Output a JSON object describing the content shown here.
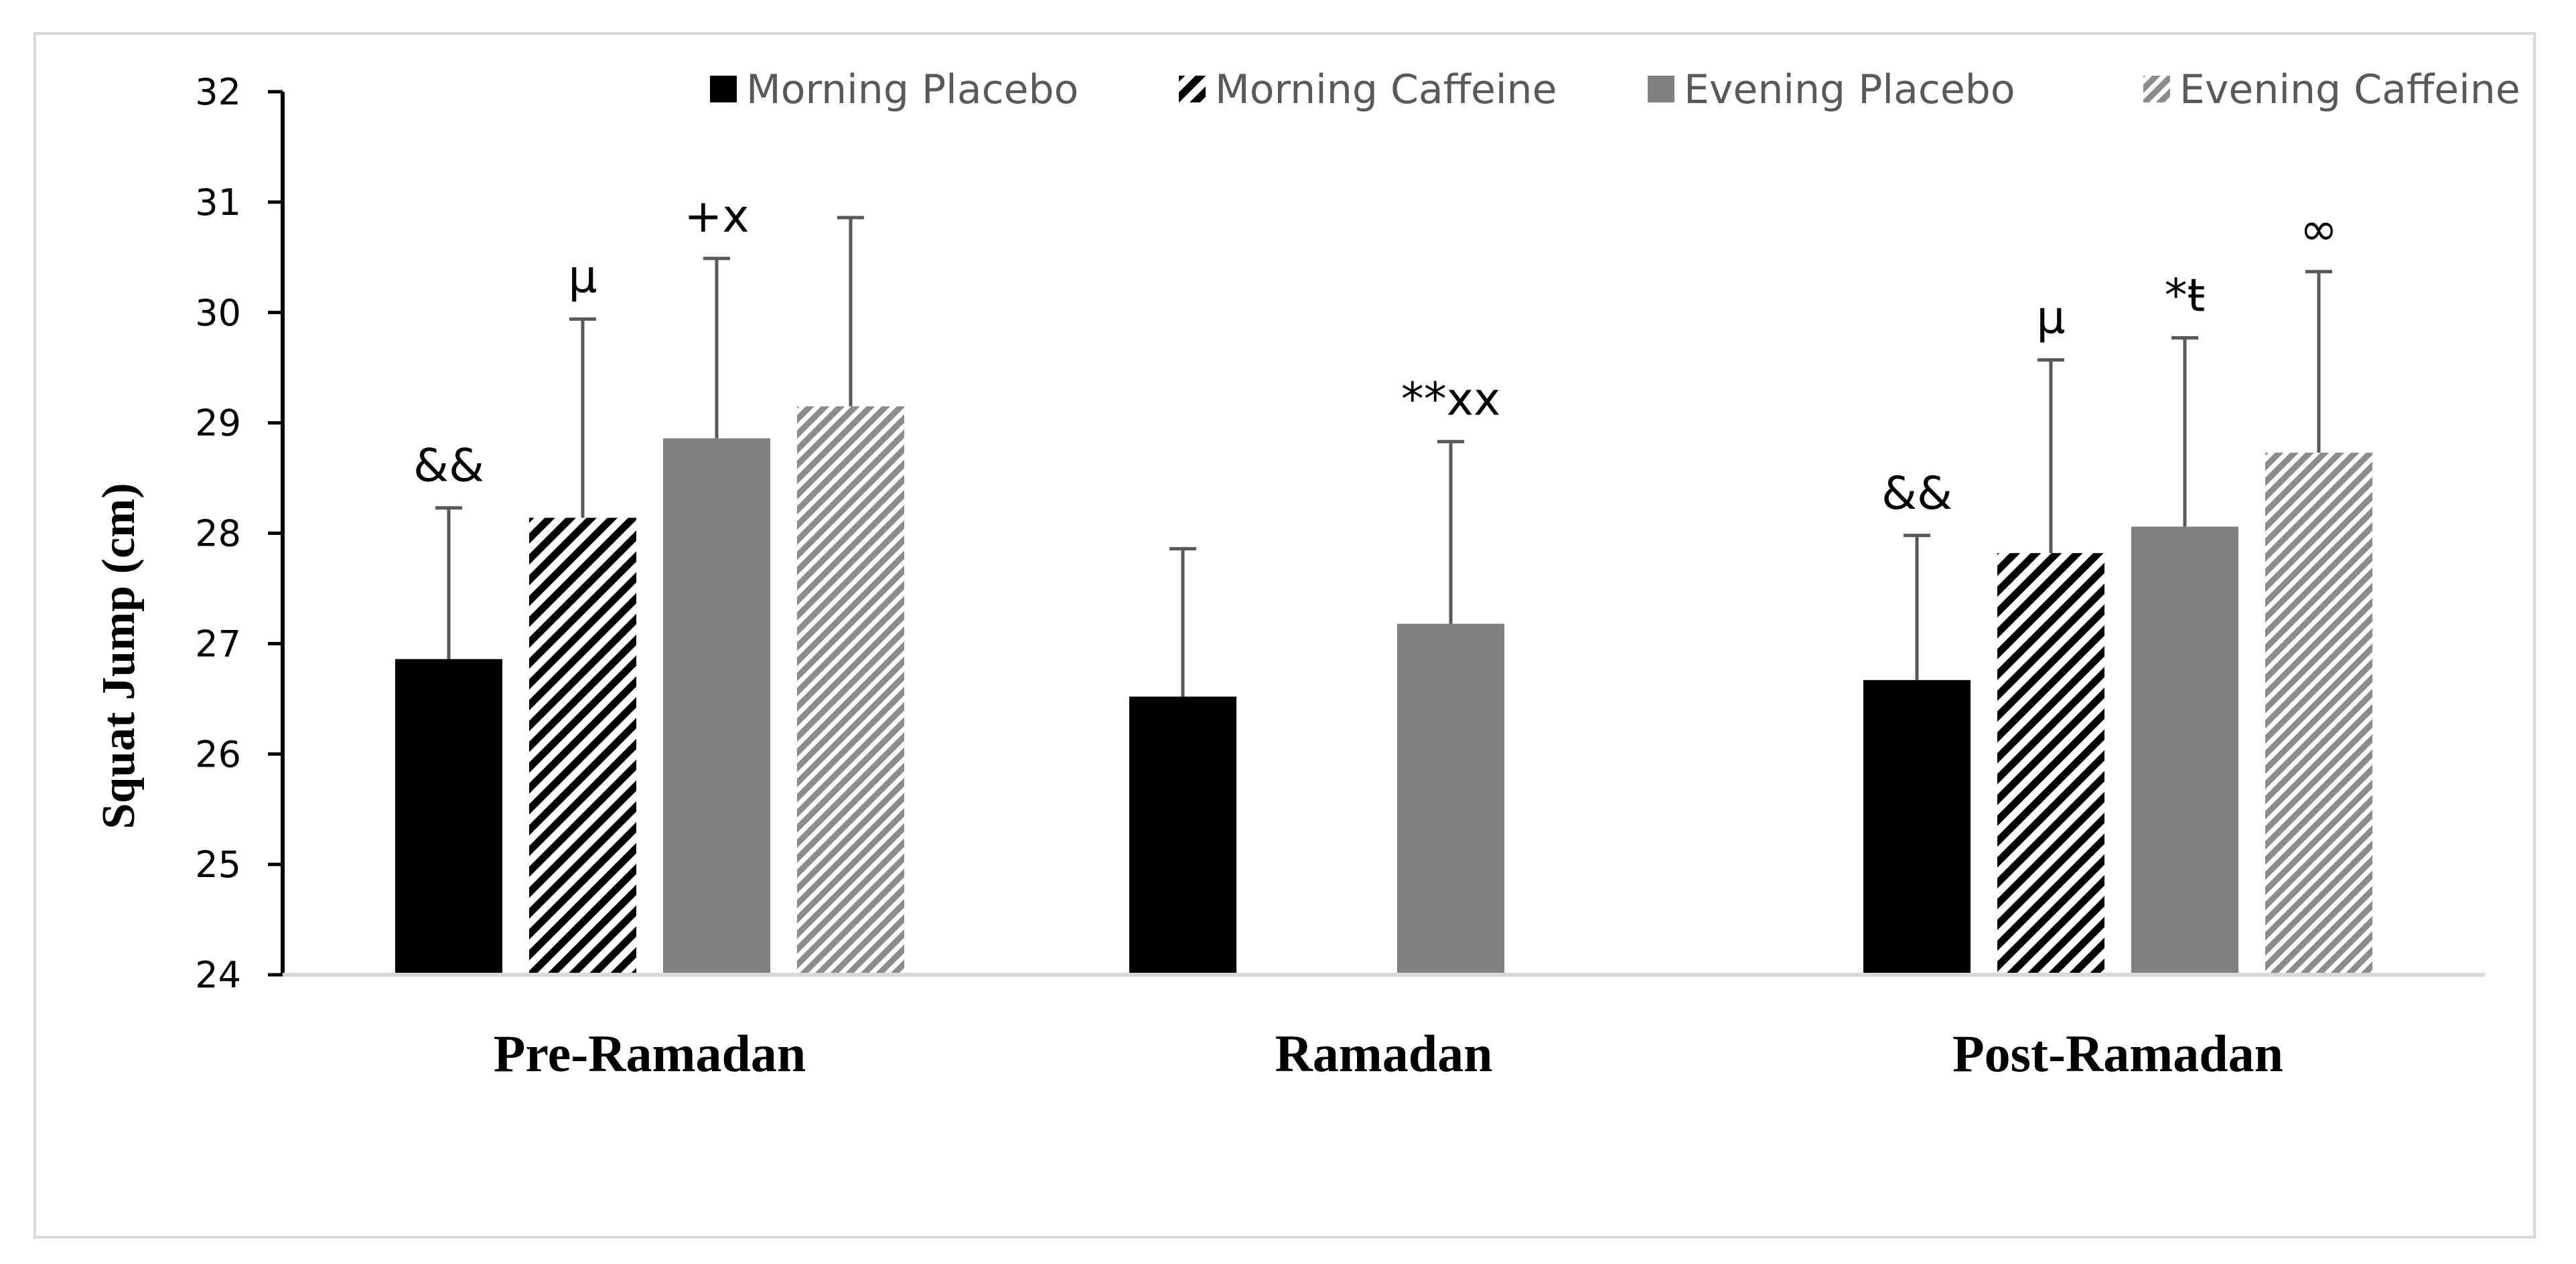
{
  "chart_data": {
    "type": "bar",
    "title": "",
    "ylabel": "Squat Jump (cm)",
    "xlabel": "",
    "ylim": [
      24,
      32
    ],
    "yticks": [
      24,
      25,
      26,
      27,
      28,
      29,
      30,
      31,
      32
    ],
    "grid": false,
    "legend_position": "top",
    "categories": [
      "Pre-Ramadan",
      "Ramadan",
      "Post-Ramadan"
    ],
    "series": [
      {
        "name": "Morning Placebo",
        "style": "solid",
        "color": "#000000",
        "values": [
          26.86,
          26.52,
          26.67
        ],
        "errors": [
          1.37,
          1.34,
          1.31
        ],
        "annotations": [
          "&&",
          "",
          "&&"
        ]
      },
      {
        "name": "Morning Caffeine",
        "style": "dark-diagonal-stripes",
        "color": "#000000",
        "values": [
          28.14,
          null,
          27.82
        ],
        "errors": [
          1.8,
          null,
          1.75
        ],
        "annotations": [
          "µ",
          "",
          "µ"
        ]
      },
      {
        "name": "Evening Placebo",
        "style": "solid",
        "color": "#808080",
        "values": [
          28.86,
          27.18,
          28.06
        ],
        "errors": [
          1.63,
          1.65,
          1.71
        ],
        "annotations": [
          "+x",
          "**xx",
          "*ŧ"
        ]
      },
      {
        "name": "Evening Caffeine",
        "style": "light-diagonal-stripes",
        "color": "#a6a6a6",
        "values": [
          29.15,
          null,
          28.73
        ],
        "errors": [
          1.71,
          null,
          1.64
        ],
        "annotations": [
          "",
          "",
          "∞"
        ]
      }
    ]
  }
}
